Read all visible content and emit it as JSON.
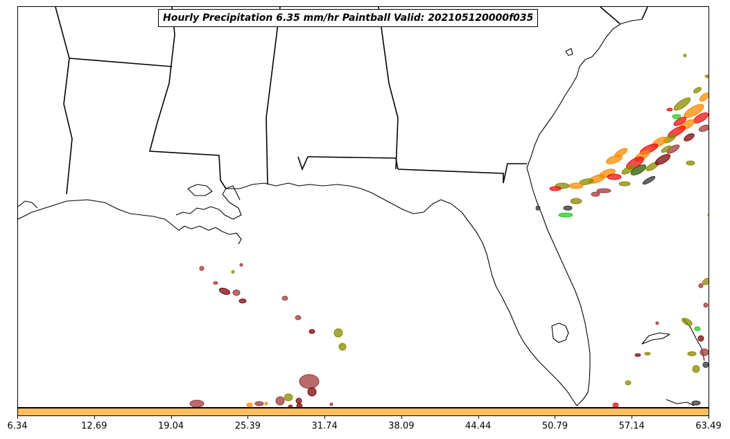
{
  "title": "Hourly Precipitation 6.35 mm/hr Paintball Valid: 202105120000f035",
  "colorbar": {
    "color": "#ffbf60",
    "ticks": [
      "6.34",
      "12.69",
      "19.04",
      "25.39",
      "31.74",
      "38.09",
      "44.44",
      "50.79",
      "57.14",
      "63.49"
    ]
  },
  "colors": {
    "coast": "#000000",
    "red": "#ee1010",
    "orange": "#ff8a00",
    "olive": "#8a8a00",
    "dark_red": "#7a0a0a",
    "brown": "#a03a3a",
    "green": "#22cc22",
    "dark_green": "#2d5a00",
    "dark_gray": "#333333"
  }
}
